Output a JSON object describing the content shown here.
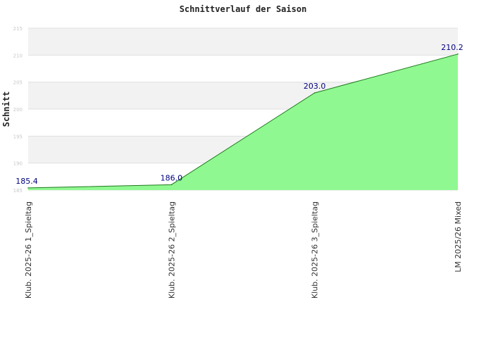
{
  "chart_data": {
    "type": "area",
    "title": "Schnittverlauf der Saison",
    "xlabel": "",
    "ylabel": "Schnitt",
    "categories": [
      "Klub. 2025-26  1_Spieltag",
      "Klub. 2025-26  2_Spieltag",
      "Klub. 2025-26  3_Spieltag",
      "LM 2025/26 Mixed"
    ],
    "values": [
      185.4,
      186.0,
      203.0,
      210.2
    ],
    "data_labels": [
      "185.4",
      "186.0",
      "203.0",
      "210.2"
    ],
    "ylim": [
      185,
      215
    ],
    "yticks": [
      "185",
      "190",
      "195",
      "200",
      "205",
      "210",
      "215"
    ],
    "grid": true,
    "colors": {
      "fill": "#90f890",
      "line": "#1e7a1e",
      "band_dark": "#f2f2f2",
      "band_light": "#ffffff",
      "label": "#000080"
    }
  }
}
